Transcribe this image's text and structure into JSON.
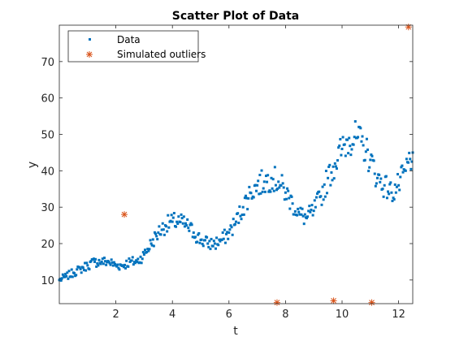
{
  "chart_data": {
    "type": "scatter",
    "title": "Scatter Plot of Data",
    "xlabel": "t",
    "ylabel": "y",
    "xlim": [
      0,
      12.5
    ],
    "ylim": [
      3.5,
      80
    ],
    "xticks": [
      2,
      4,
      6,
      8,
      10,
      12
    ],
    "xtick_labels": [
      "2",
      "4",
      "6",
      "8",
      "10",
      "12"
    ],
    "yticks": [
      10,
      20,
      30,
      40,
      50,
      60,
      70
    ],
    "ytick_labels": [
      "10",
      "20",
      "30",
      "40",
      "50",
      "60",
      "70"
    ],
    "grid": false,
    "legend_position": "top-left",
    "series": [
      {
        "name": "Data",
        "marker": "point",
        "color": "#0072BD",
        "x": [
          0.0,
          0.25,
          0.5,
          0.75,
          1.0,
          1.25,
          1.5,
          1.75,
          2.0,
          2.25,
          2.5,
          2.75,
          3.0,
          3.25,
          3.5,
          3.75,
          4.0,
          4.25,
          4.5,
          4.75,
          5.0,
          5.25,
          5.5,
          5.75,
          6.0,
          6.25,
          6.5,
          6.75,
          7.0,
          7.25,
          7.5,
          7.75,
          8.0,
          8.25,
          8.5,
          8.75,
          9.0,
          9.25,
          9.5,
          9.75,
          10.0,
          10.25,
          10.5,
          10.75,
          11.0,
          11.25,
          11.5,
          11.75,
          12.0,
          12.25,
          12.5
        ],
        "y": [
          10,
          11,
          12,
          13,
          14,
          15,
          15,
          15,
          14,
          14,
          15,
          15,
          17,
          20,
          23,
          25,
          26,
          26,
          25,
          23,
          21,
          20,
          20,
          21,
          23,
          26,
          30,
          34,
          36,
          37,
          38,
          37,
          34,
          31,
          28,
          27,
          29,
          33,
          38,
          42,
          46,
          49,
          49,
          47,
          43,
          38,
          36,
          34,
          36,
          40,
          45
        ]
      },
      {
        "name": "Simulated outliers",
        "marker": "asterisk",
        "color": "#D95319",
        "x": [
          2.3,
          7.7,
          9.7,
          11.05,
          12.35
        ],
        "y": [
          28,
          3.8,
          4.3,
          3.8,
          79.5
        ]
      }
    ]
  }
}
